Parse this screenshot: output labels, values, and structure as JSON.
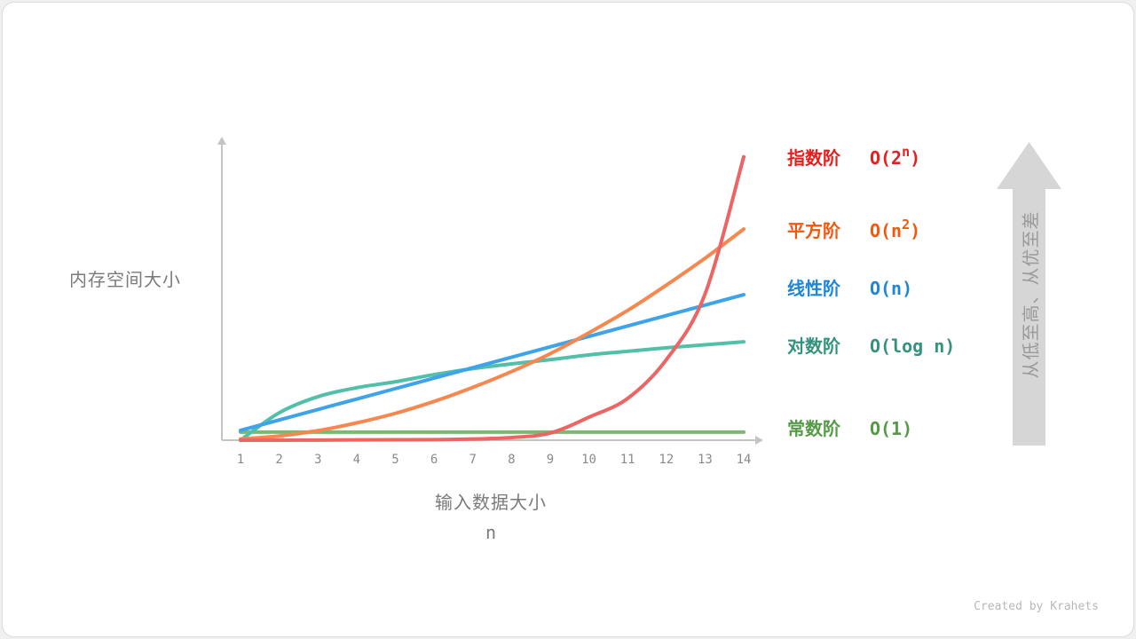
{
  "chart_data": {
    "type": "line",
    "title": "",
    "xlabel": "输入数据大小",
    "xlabel_var": "n",
    "ylabel": "内存空间大小",
    "x": [
      1,
      2,
      3,
      4,
      5,
      6,
      7,
      8,
      9,
      10,
      11,
      12,
      13,
      14
    ],
    "xlim": [
      1,
      14
    ],
    "ylim": [
      0,
      100
    ],
    "grid": false,
    "legend_placement": "right",
    "series": [
      {
        "name": "指数阶",
        "expr": "O(2",
        "sup": "n",
        "close": ")",
        "line_color": "#ec6464",
        "label_color": "#e3201f",
        "values": [
          0,
          0,
          0.05,
          0.1,
          0.15,
          0.2,
          0.4,
          0.9,
          2.4,
          7.7,
          14,
          27,
          49,
          95
        ]
      },
      {
        "name": "平方阶",
        "expr": "O(n",
        "sup": "2",
        "close": ")",
        "line_color": "#f6884f",
        "label_color": "#f1580f",
        "values": [
          0.4,
          1.4,
          3.2,
          5.8,
          9,
          13,
          17.7,
          23,
          29,
          36,
          43.5,
          52,
          61,
          70.8
        ]
      },
      {
        "name": "线性阶",
        "expr": "O(n)",
        "sup": "",
        "close": "",
        "line_color": "#3fa3ea",
        "label_color": "#1e86d6",
        "values": [
          3.3,
          6.8,
          10.3,
          13.8,
          17.3,
          20.8,
          24.3,
          27.8,
          31.3,
          34.8,
          38.3,
          41.8,
          45.3,
          48.8
        ]
      },
      {
        "name": "对数阶",
        "expr": "O(log n)",
        "sup": "",
        "close": "",
        "line_color": "#52bfa9",
        "label_color": "#35927f",
        "values": [
          0,
          9.2,
          14.6,
          17.6,
          19.6,
          22,
          24,
          25.6,
          27,
          28.6,
          29.8,
          31,
          32,
          33
        ]
      },
      {
        "name": "常数阶",
        "expr": "O(1)",
        "sup": "",
        "close": "",
        "line_color": "#7db872",
        "label_color": "#559a47",
        "values": [
          2.7,
          2.7,
          2.7,
          2.7,
          2.7,
          2.7,
          2.7,
          2.7,
          2.7,
          2.7,
          2.7,
          2.7,
          2.7,
          2.7
        ]
      }
    ]
  },
  "side_arrow": {
    "text": "从低至高、从优至差",
    "color": "#d6d6d6"
  },
  "footer": {
    "credit": "Created by Krahets"
  }
}
